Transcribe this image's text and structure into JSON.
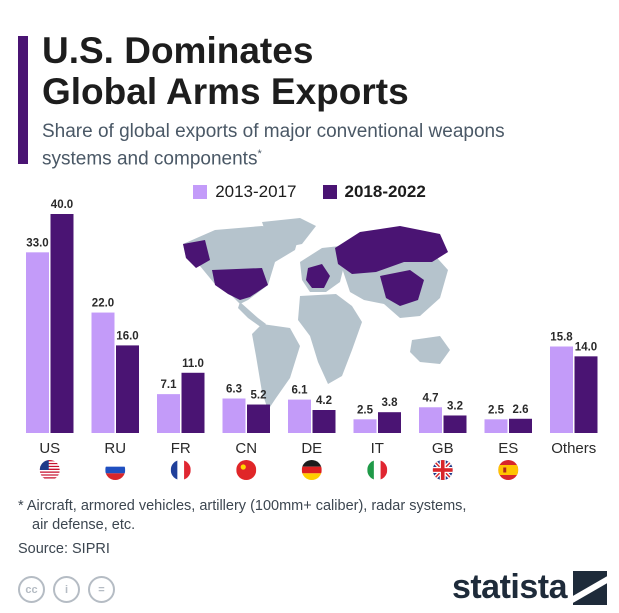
{
  "header": {
    "title_line1": "U.S. Dominates",
    "title_line2": "Global Arms Exports",
    "subtitle": "Share of global exports of major conventional weapons systems and components",
    "subtitle_mark": "*"
  },
  "legend": [
    {
      "label": "2013-2017",
      "color": "#c39bf9"
    },
    {
      "label": "2018-2022",
      "color": "#4a1473"
    }
  ],
  "chart_data": {
    "type": "bar",
    "categories": [
      "US",
      "RU",
      "FR",
      "CN",
      "DE",
      "IT",
      "GB",
      "ES",
      "Others"
    ],
    "series": [
      {
        "name": "2013-2017",
        "values": [
          33.0,
          22.0,
          7.1,
          6.3,
          6.1,
          2.5,
          4.7,
          2.5,
          15.8
        ],
        "color": "#c39bf9"
      },
      {
        "name": "2018-2022",
        "values": [
          40.0,
          16.0,
          11.0,
          5.2,
          4.2,
          3.8,
          3.2,
          2.6,
          14.0
        ],
        "color": "#4a1473"
      }
    ],
    "flags": [
      "us-flag-icon",
      "ru-flag-icon",
      "fr-flag-icon",
      "cn-flag-icon",
      "de-flag-icon",
      "it-flag-icon",
      "gb-flag-icon",
      "es-flag-icon",
      ""
    ],
    "ylim": [
      0,
      40
    ],
    "grid": false,
    "legend_position": "top-center",
    "background_map": "world-map highlighting the exporting countries"
  },
  "footnote_line1": "* Aircraft, armored vehicles, artillery (100mm+ caliber), radar systems,",
  "footnote_line2": "air defense, etc.",
  "source": "Source: SIPRI",
  "brand": "statista",
  "license_icons": [
    "cc-icon",
    "by-icon",
    "nd-icon"
  ],
  "license_labels": [
    "cc",
    "i",
    "="
  ]
}
